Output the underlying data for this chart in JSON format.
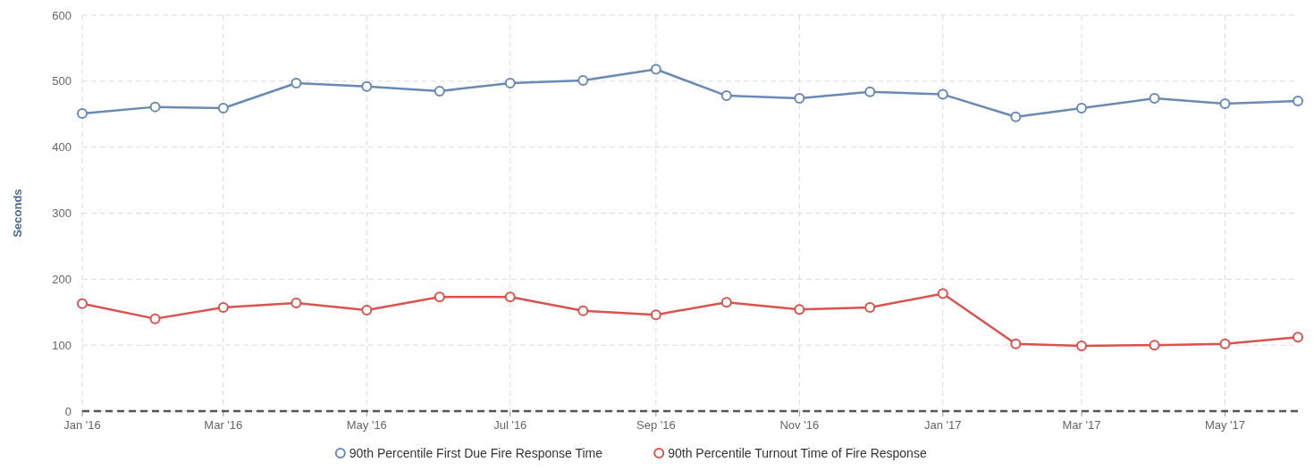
{
  "chart_data": {
    "type": "line",
    "ylabel": "Seconds",
    "x": [
      "2016-01",
      "2016-02",
      "2016-03",
      "2016-04",
      "2016-05",
      "2016-06",
      "2016-07",
      "2016-08",
      "2016-09",
      "2016-10",
      "2016-11",
      "2016-12",
      "2017-01",
      "2017-02",
      "2017-03",
      "2017-04",
      "2017-05",
      "2017-06"
    ],
    "series": [
      {
        "name": "90th Percentile First Due Fire Response Time",
        "color": "#6b8ab3",
        "values": [
          451,
          461,
          459,
          497,
          492,
          485,
          497,
          501,
          518,
          478,
          474,
          484,
          480,
          446,
          459,
          474,
          466,
          470
        ]
      },
      {
        "name": "90th Percentile Turnout Time of Fire Response",
        "color": "#d9534f",
        "values": [
          163,
          140,
          157,
          164,
          153,
          173,
          173,
          152,
          146,
          165,
          154,
          157,
          178,
          102,
          99,
          100,
          102,
          112
        ]
      }
    ],
    "xlim": [
      "2016-01",
      "2017-06"
    ],
    "xticks": [
      {
        "value": "2016-01",
        "label": "Jan '16"
      },
      {
        "value": "2016-03",
        "label": "Mar '16"
      },
      {
        "value": "2016-05",
        "label": "May '16"
      },
      {
        "value": "2016-07",
        "label": "Jul '16"
      },
      {
        "value": "2016-09",
        "label": "Sep '16"
      },
      {
        "value": "2016-11",
        "label": "Nov '16"
      },
      {
        "value": "2017-01",
        "label": "Jan '17"
      },
      {
        "value": "2017-03",
        "label": "Mar '17"
      },
      {
        "value": "2017-05",
        "label": "May '17"
      }
    ],
    "ylim": [
      0,
      600
    ],
    "yticks": [
      0,
      100,
      200,
      300,
      400,
      500,
      600
    ],
    "ref_lines": [
      {
        "axis": "y",
        "value": 0,
        "color": "#555555",
        "line_style": "dashed"
      }
    ],
    "grid": true,
    "legend": "bottom",
    "marker": "circle",
    "line_style": "solid"
  }
}
